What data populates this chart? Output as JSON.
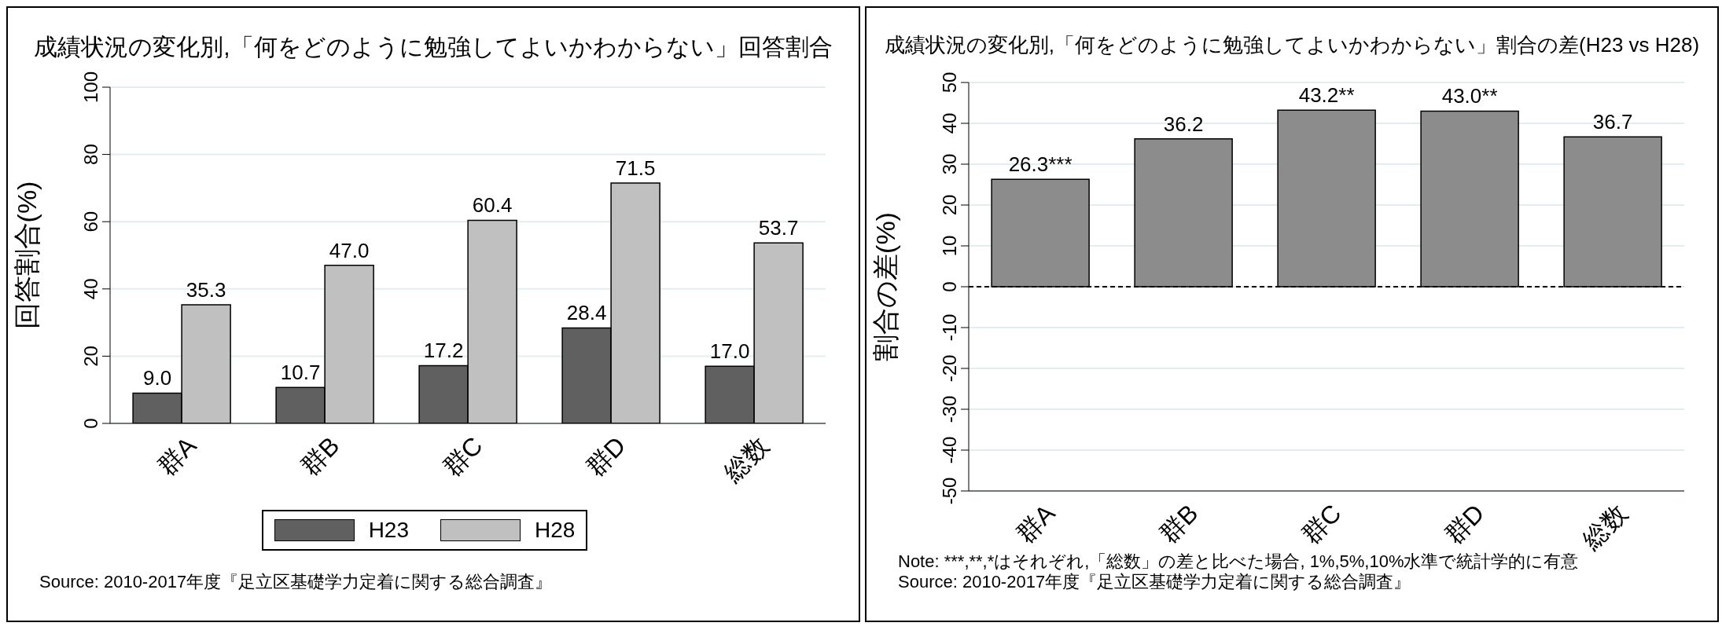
{
  "chart_data": [
    {
      "type": "bar",
      "title": "成績状況の変化別,「何をどのように勉強してよいかわからない」回答割合",
      "ylabel": "回答割合(%)",
      "categories": [
        "群A",
        "群B",
        "群C",
        "群D",
        "総数"
      ],
      "series": [
        {
          "name": "H23",
          "color": "#606060",
          "values": [
            9.0,
            10.7,
            17.2,
            28.4,
            17.0
          ],
          "value_labels": [
            "9.0",
            "10.7",
            "17.2",
            "28.4",
            "17.0"
          ]
        },
        {
          "name": "H28",
          "color": "#c0c0c0",
          "values": [
            35.3,
            47.0,
            60.4,
            71.5,
            53.7
          ],
          "value_labels": [
            "35.3",
            "47.0",
            "60.4",
            "71.5",
            "53.7"
          ]
        }
      ],
      "ylim": [
        0,
        100
      ],
      "yticks": [
        0,
        20,
        40,
        60,
        80,
        100
      ],
      "grid": "y",
      "legend": "bottom",
      "annotations": [
        "Source: 2010-2017年度『足立区基礎学力定着に関する総合調査』"
      ]
    },
    {
      "type": "bar",
      "title": "成績状況の変化別,「何をどのように勉強してよいかわからない」割合の差(H23 vs H28)",
      "ylabel": "割合の差(%)",
      "categories": [
        "群A",
        "群B",
        "群C",
        "群D",
        "総数"
      ],
      "series": [
        {
          "color": "#8c8c8c",
          "values": [
            26.3,
            36.2,
            43.2,
            43.0,
            36.7
          ],
          "value_labels": [
            "26.3***",
            "36.2",
            "43.2**",
            "43.0**",
            "36.7"
          ]
        }
      ],
      "ylim": [
        -50,
        50
      ],
      "yticks": [
        -50,
        -40,
        -30,
        -20,
        -10,
        0,
        10,
        20,
        30,
        40,
        50
      ],
      "grid": "y",
      "ref_lines": [
        {
          "axis": "y",
          "value": 0,
          "color": "#000000",
          "line_style": "dashed"
        }
      ],
      "annotations": [
        "Note: ***,**,*はそれぞれ,「総数」の差と比べた場合, 1%,5%,10%水準で統計学的に有意",
        "Source: 2010-2017年度『足立区基礎学力定着に関する総合調査』"
      ]
    }
  ]
}
